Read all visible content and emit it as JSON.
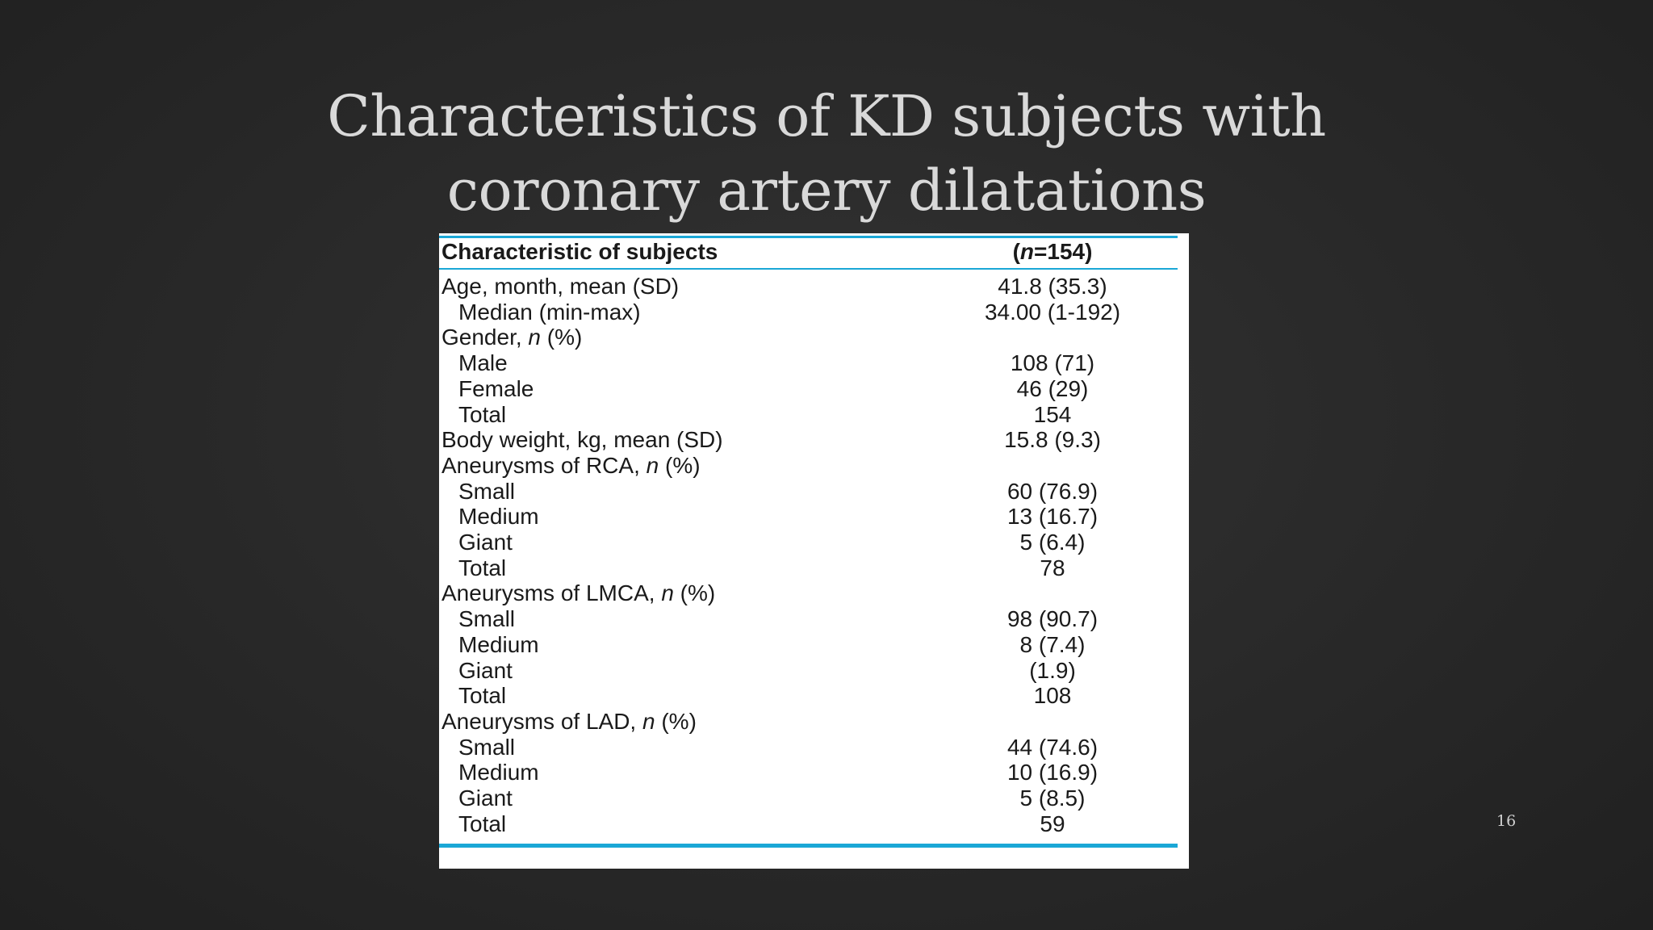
{
  "slide": {
    "title_line1": "Characteristics of KD subjects with",
    "title_line2": "coronary artery dilatations",
    "page_number": "16"
  },
  "table": {
    "header": {
      "label": "Characteristic of subjects",
      "value_prefix": "(",
      "value_italic": "n",
      "value_suffix": "=154)"
    },
    "rows": [
      {
        "label": "Age, month, mean (SD)",
        "value": "41.8 (35.3)"
      },
      {
        "label": "Median (min-max)",
        "value": "34.00 (1-192)"
      },
      {
        "label_main": "Gender, ",
        "label_italic": "n",
        "label_tail": " (%)",
        "value": ""
      },
      {
        "label": "Male",
        "value": "108 (71)"
      },
      {
        "label": "Female",
        "value": "46 (29)"
      },
      {
        "label": "Total",
        "value": "154"
      },
      {
        "label": "Body weight, kg, mean (SD)",
        "value": "15.8 (9.3)"
      },
      {
        "label_main": "Aneurysms of RCA, ",
        "label_italic": "n",
        "label_tail": " (%)",
        "value": ""
      },
      {
        "label": "Small",
        "value": "60 (76.9)"
      },
      {
        "label": "Medium",
        "value": "13 (16.7)"
      },
      {
        "label": "Giant",
        "value": "5 (6.4)"
      },
      {
        "label": "Total",
        "value": "78"
      },
      {
        "label_main": "Aneurysms of LMCA, ",
        "label_italic": "n",
        "label_tail": " (%)",
        "value": ""
      },
      {
        "label": "Small",
        "value": "98 (90.7)"
      },
      {
        "label": "Medium",
        "value": "8 (7.4)"
      },
      {
        "label": "Giant",
        "value": "(1.9)"
      },
      {
        "label": "Total",
        "value": "108"
      },
      {
        "label_main": "Aneurysms of LAD, ",
        "label_italic": "n",
        "label_tail": " (%)",
        "value": ""
      },
      {
        "label": "Small",
        "value": "44 (74.6)"
      },
      {
        "label": "Medium",
        "value": "10 (16.9)"
      },
      {
        "label": "Giant",
        "value": "5 (8.5)"
      },
      {
        "label": "Total",
        "value": "59"
      }
    ]
  },
  "colors": {
    "rule_blue": "#1aa7d6",
    "title_text": "#d9d9d9"
  }
}
